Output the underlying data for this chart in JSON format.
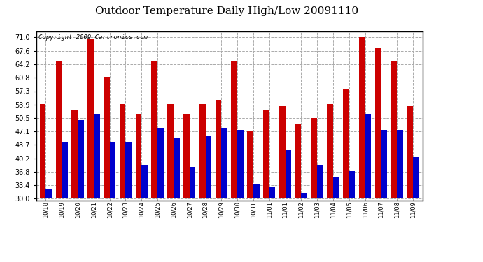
{
  "title": "Outdoor Temperature Daily High/Low 20091110",
  "copyright": "Copyright 2009 Cartronics.com",
  "categories": [
    "10/18",
    "10/19",
    "10/20",
    "10/21",
    "10/22",
    "10/23",
    "10/24",
    "10/25",
    "10/26",
    "10/27",
    "10/28",
    "10/29",
    "10/30",
    "10/31",
    "11/01",
    "11/01",
    "11/02",
    "11/03",
    "11/04",
    "11/05",
    "11/06",
    "11/07",
    "11/08",
    "11/09"
  ],
  "high_temps": [
    54.0,
    65.0,
    52.5,
    70.5,
    61.0,
    54.0,
    51.5,
    65.0,
    54.0,
    51.5,
    54.0,
    55.0,
    65.0,
    47.0,
    52.5,
    53.5,
    49.0,
    50.5,
    54.0,
    58.0,
    71.0,
    68.5,
    65.0,
    53.5
  ],
  "low_temps": [
    32.5,
    44.5,
    50.0,
    51.5,
    44.5,
    44.5,
    38.5,
    48.0,
    45.5,
    38.0,
    46.0,
    48.0,
    47.5,
    33.5,
    33.0,
    42.5,
    31.5,
    38.5,
    35.5,
    37.0,
    51.5,
    47.5,
    47.5,
    40.5
  ],
  "high_color": "#cc0000",
  "low_color": "#0000cc",
  "bg_color": "#ffffff",
  "yticks": [
    30.0,
    33.4,
    36.8,
    40.2,
    43.7,
    47.1,
    50.5,
    53.9,
    57.3,
    60.8,
    64.2,
    67.6,
    71.0
  ],
  "ybase": 30.0,
  "ylim": [
    29.5,
    72.5
  ],
  "grid_color": "#aaaaaa",
  "title_fontsize": 11,
  "copyright_fontsize": 6.5,
  "tick_fontsize": 7,
  "xtick_fontsize": 6
}
